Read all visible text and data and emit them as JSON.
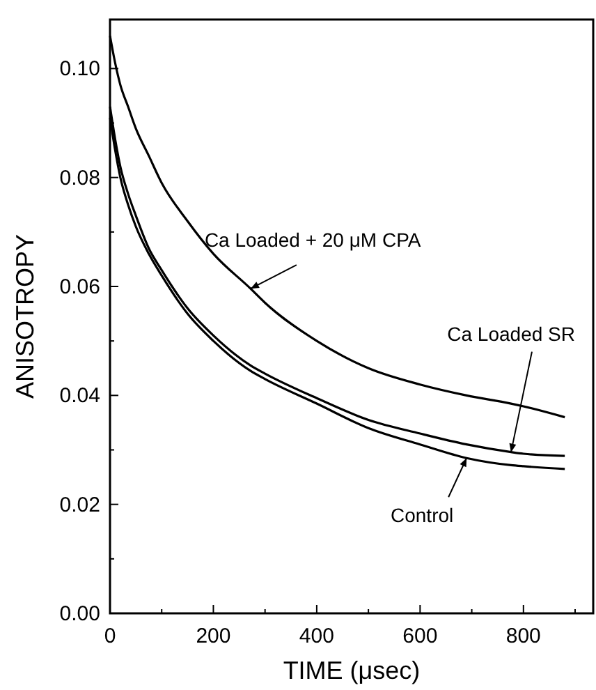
{
  "chart_data": {
    "type": "line",
    "xlabel": "TIME (μsec)",
    "ylabel": "ANISOTROPY",
    "x": [
      0,
      10,
      20,
      35,
      50,
      75,
      100,
      150,
      200,
      272,
      300,
      400,
      500,
      600,
      690,
      776,
      800,
      880
    ],
    "series": [
      {
        "color": "#000000",
        "values": [
          0.106,
          0.101,
          0.097,
          0.093,
          0.089,
          0.084,
          0.079,
          0.072,
          0.066,
          0.0596,
          0.057,
          0.05,
          0.045,
          0.042,
          0.04,
          0.0385,
          0.038,
          0.036
        ]
      },
      {
        "color": "#000000",
        "values": [
          0.093,
          0.087,
          0.082,
          0.077,
          0.073,
          0.067,
          0.063,
          0.056,
          0.051,
          0.0455,
          0.044,
          0.0395,
          0.0355,
          0.033,
          0.031,
          0.0296,
          0.0293,
          0.0289
        ]
      },
      {
        "color": "#000000",
        "values": [
          0.091,
          0.085,
          0.08,
          0.075,
          0.071,
          0.066,
          0.062,
          0.055,
          0.05,
          0.0445,
          0.043,
          0.0385,
          0.034,
          0.031,
          0.0285,
          0.0272,
          0.027,
          0.0265
        ]
      }
    ],
    "xlim": [
      0,
      935
    ],
    "ylim": [
      0,
      0.109
    ],
    "xticks": [
      0,
      {
        "value": 100,
        "label": null
      },
      200,
      {
        "value": 300,
        "label": null
      },
      400,
      {
        "value": 500,
        "label": null
      },
      600,
      {
        "value": 700,
        "label": null
      },
      800,
      {
        "value": 900,
        "label": null
      }
    ],
    "yticks": [
      {
        "value": 0,
        "label": "0.00"
      },
      {
        "value": 0.01,
        "label": null
      },
      {
        "value": 0.02,
        "label": "0.02"
      },
      {
        "value": 0.03,
        "label": null
      },
      {
        "value": 0.04,
        "label": "0.04"
      },
      {
        "value": 0.05,
        "label": null
      },
      {
        "value": 0.06,
        "label": "0.06"
      },
      {
        "value": 0.07,
        "label": null
      },
      {
        "value": 0.08,
        "label": "0.08"
      },
      {
        "value": 0.09,
        "label": null
      },
      {
        "value": 0.1,
        "label": "0.10"
      }
    ],
    "annotations": [
      {
        "text": "Ca Loaded + 20 μM CPA",
        "x": 272,
        "y": 0.0596
      },
      {
        "text": "Ca Loaded SR",
        "x": 776,
        "y": 0.0296
      },
      {
        "text": "Control",
        "x": 690,
        "y": 0.0285
      }
    ],
    "grid": false,
    "marker": "none",
    "line_style": "solid"
  }
}
